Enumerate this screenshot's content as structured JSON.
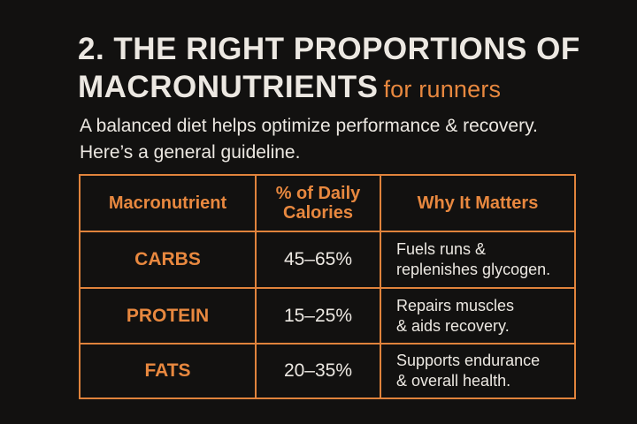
{
  "title": {
    "main": "2. THE RIGHT PROPORTIONS OF MACRONUTRIENTS",
    "accent": "for runners"
  },
  "subtitle": {
    "line1": "A balanced diet helps optimize performance & recovery.",
    "line2": "Here’s a general guideline."
  },
  "table": {
    "headers": {
      "nutrient": "Macronutrient",
      "percent_line1": "% of Daily",
      "percent_line2": "Calories",
      "why": "Why It Matters"
    },
    "rows": [
      {
        "nutrient": "CARBS",
        "percent": "45–65%",
        "why_line1": "Fuels runs &",
        "why_line2": "replenishes glycogen."
      },
      {
        "nutrient": "PROTEIN",
        "percent": "15–25%",
        "why_line1": "Repairs muscles",
        "why_line2": "& aids recovery."
      },
      {
        "nutrient": "FATS",
        "percent": "20–35%",
        "why_line1": "Supports endurance",
        "why_line2": "& overall health."
      }
    ]
  },
  "colors": {
    "background": "#121110",
    "accent": "#e8883f",
    "text": "#ece8e2",
    "border": "#e0833c"
  }
}
